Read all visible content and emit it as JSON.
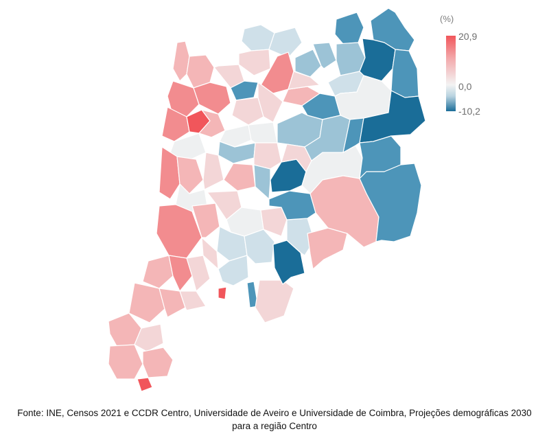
{
  "legend": {
    "unit": "(%)",
    "max_label": "20,9",
    "zero_label": "0,0",
    "min_label": "-10,2",
    "max_color": "#f1565b",
    "zero_color": "#f3f3f3",
    "min_color": "#1a6d98"
  },
  "source": {
    "line1": "Fonte: INE, Censos 2021 e CCDR Centro, Universidade de Aveiro e Universidade de Coimbra, Projeções demográficas 2030",
    "line2": "para a região Centro"
  },
  "map": {
    "colors": {
      "red_strong": "#f1565b",
      "red_medium": "#f28c8f",
      "red_light": "#f4b6b7",
      "pink_pale": "#f3d6d7",
      "neutral": "#eef0f1",
      "blue_pale": "#cfe0e9",
      "blue_light": "#9cc3d6",
      "blue_medium": "#4d95b9",
      "blue_strong": "#1a6d98"
    }
  }
}
